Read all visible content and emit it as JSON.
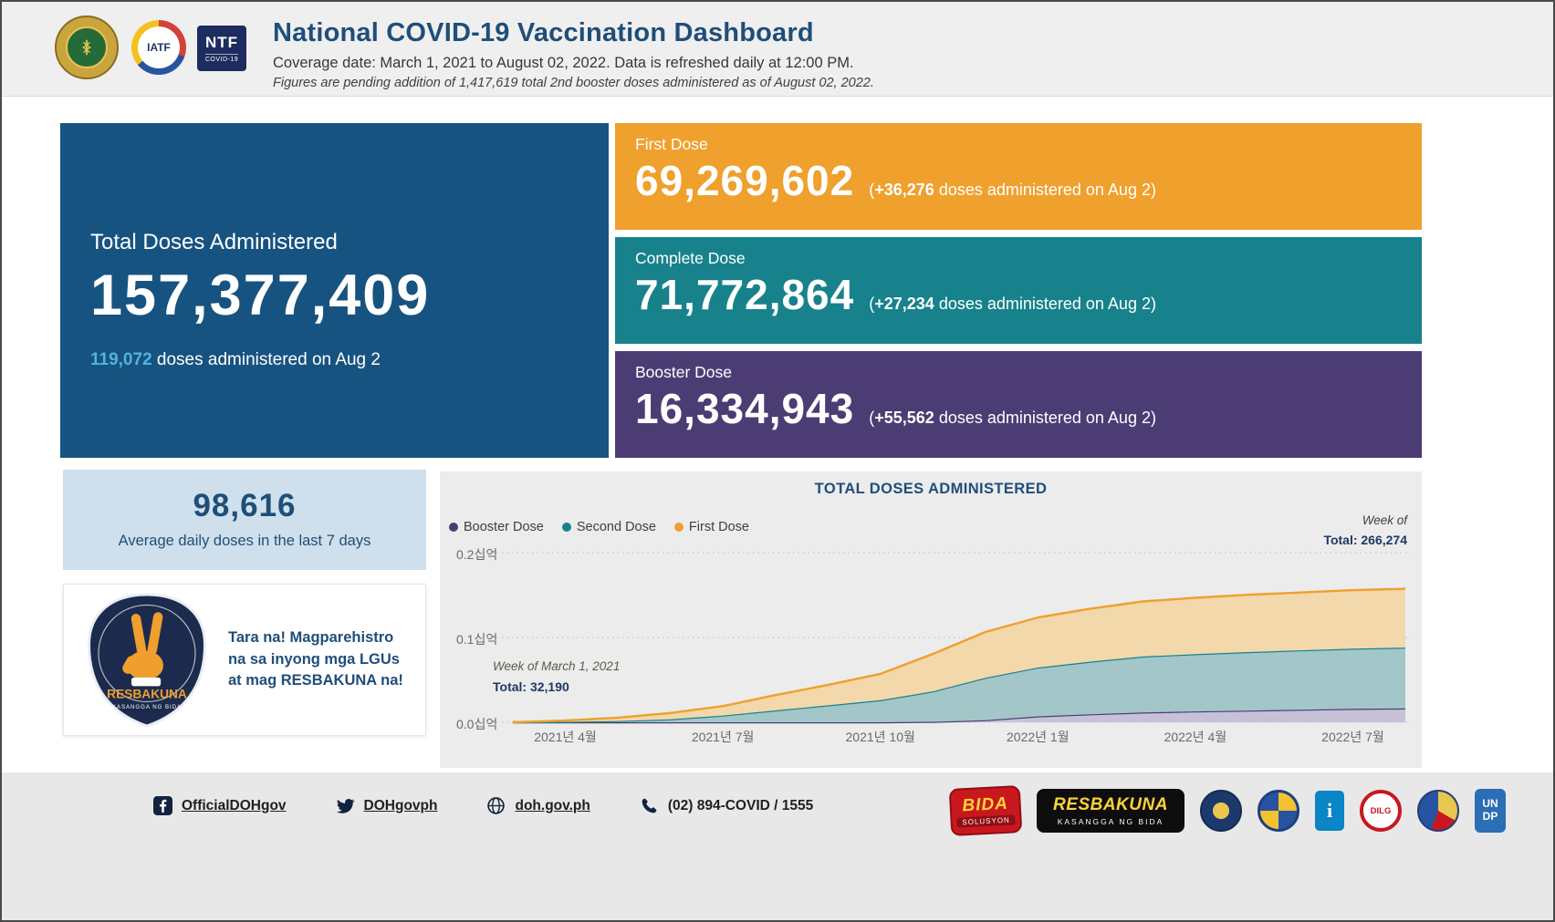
{
  "colors": {
    "header_bg": "#f0efef",
    "title_blue": "#1f4e79",
    "total_card_bg": "#175380",
    "delta_blue": "#53b1e0",
    "stats_card_bg": "#cfe0ec",
    "chart_panel_bg": "#ececec",
    "footer_bg": "#e9e8e8"
  },
  "header": {
    "title": "National COVID-19 Vaccination Dashboard",
    "subtitle": "Coverage date: March 1, 2021 to August 02, 2022. Data is refreshed daily at 12:00 PM.",
    "note": "Figures are pending addition of 1,417,619 total 2nd booster doses administered as of August 02, 2022.",
    "iatf_logo": {
      "text": "IATF"
    },
    "ntf_logo": {
      "line1": "NTF",
      "line2": "COVID-19"
    }
  },
  "total_card": {
    "label": "Total Doses Administered",
    "value": "157,377,409",
    "delta_value": "119,072",
    "delta_suffix": " doses administered on Aug 2"
  },
  "dose_cards": [
    {
      "label": "First Dose",
      "value": "69,269,602",
      "delta_prefix": "(",
      "delta_value": "+36,276",
      "delta_suffix": " doses administered on Aug 2)",
      "bg": "#efa02d"
    },
    {
      "label": "Complete Dose",
      "value": "71,772,864",
      "delta_prefix": "(",
      "delta_value": "+27,234",
      "delta_suffix": " doses administered on Aug 2)",
      "bg": "#17828c"
    },
    {
      "label": "Booster Dose",
      "value": "16,334,943",
      "delta_prefix": "(",
      "delta_value": "+55,562",
      "delta_suffix": " doses administered on Aug 2)",
      "bg": "#4b3d74"
    }
  ],
  "stats": {
    "value": "98,616",
    "label": "Average daily doses in the last 7 days"
  },
  "promo": {
    "text": "Tara na! Magparehistro na sa inyong mga LGUs at mag RESBAKUNA na!",
    "badge_title": "RESBAKUNA",
    "badge_subtitle": "KASANGGA NG BIDA"
  },
  "chart": {
    "title": "TOTAL DOSES ADMINISTERED",
    "legend": [
      {
        "label": "Booster Dose",
        "color": "#4b3d74"
      },
      {
        "label": "Second Dose",
        "color": "#17828c"
      },
      {
        "label": "First Dose",
        "color": "#efa02d"
      }
    ],
    "end_annotation": {
      "line1": "Week of",
      "line2": "Total: 266,274"
    },
    "start_annotation": {
      "line1": "Week of March 1, 2021",
      "line2": "Total: 32,190"
    },
    "y_ticks": [
      "0.2십억",
      "0.1십억",
      "0.0십억"
    ],
    "x_ticks": [
      "2021년 4월",
      "2021년 7월",
      "2021년 10월",
      "2022년 1월",
      "2022년 4월",
      "2022년 7월"
    ]
  },
  "chart_data": {
    "type": "area",
    "stacked": true,
    "title": "TOTAL DOSES ADMINISTERED",
    "unit": "million doses (axis shown in 십억 = billions)",
    "x": [
      "2021-03",
      "2021-04",
      "2021-05",
      "2021-06",
      "2021-07",
      "2021-08",
      "2021-09",
      "2021-10",
      "2021-11",
      "2021-12",
      "2022-01",
      "2022-02",
      "2022-03",
      "2022-04",
      "2022-05",
      "2022-06",
      "2022-07",
      "2022-08"
    ],
    "x_tick_indices": [
      1,
      4,
      7,
      10,
      13,
      16
    ],
    "ylim": [
      0,
      200
    ],
    "y_gridlines": [
      0,
      100,
      200
    ],
    "legend_position": "top-left",
    "grid": "dotted-horizontal",
    "stack_order": [
      "Booster Dose",
      "Second Dose",
      "First Dose"
    ],
    "series": [
      {
        "name": "Booster Dose",
        "color": "#4b3d74",
        "fill": "#c7c1d8",
        "values": [
          0,
          0,
          0,
          0,
          0,
          0,
          0,
          0.05,
          0.5,
          2.5,
          7,
          9.5,
          11.5,
          12.8,
          13.8,
          14.8,
          15.8,
          16.33
        ]
      },
      {
        "name": "Second Dose",
        "color": "#17828c",
        "fill": "#a3c6c9",
        "values": [
          0,
          0.5,
          1.5,
          3.5,
          8,
          14,
          20,
          26,
          36,
          50,
          57.5,
          62,
          66,
          67.5,
          69,
          70,
          71,
          71.77
        ]
      },
      {
        "name": "First Dose",
        "color": "#efa02d",
        "fill": "#f2d8ab",
        "values": [
          0.03,
          1.5,
          4,
          7.5,
          11,
          18,
          24,
          31,
          44,
          54,
          59,
          62.5,
          65,
          66.5,
          67.5,
          68.2,
          69,
          69.27
        ]
      }
    ],
    "first_week_total": 32190,
    "last_week_total": 266274
  },
  "footer": {
    "links": [
      {
        "icon": "facebook-icon",
        "label": "OfficialDOHgov"
      },
      {
        "icon": "twitter-icon",
        "label": "DOHgovph"
      },
      {
        "icon": "globe-icon",
        "label": "doh.gov.ph"
      },
      {
        "icon": "phone-icon",
        "label": "(02) 894-COVID / 1555"
      }
    ],
    "badges": {
      "bida": {
        "line1": "BIDA",
        "line2": "SOLUSYON"
      },
      "resbakuna": {
        "line1": "RESBAKUNA",
        "line2": "KASANGGA NG BIDA"
      },
      "pia": "i",
      "dilg": "DILG",
      "undp": {
        "line1": "UN",
        "line2": "DP"
      }
    }
  }
}
